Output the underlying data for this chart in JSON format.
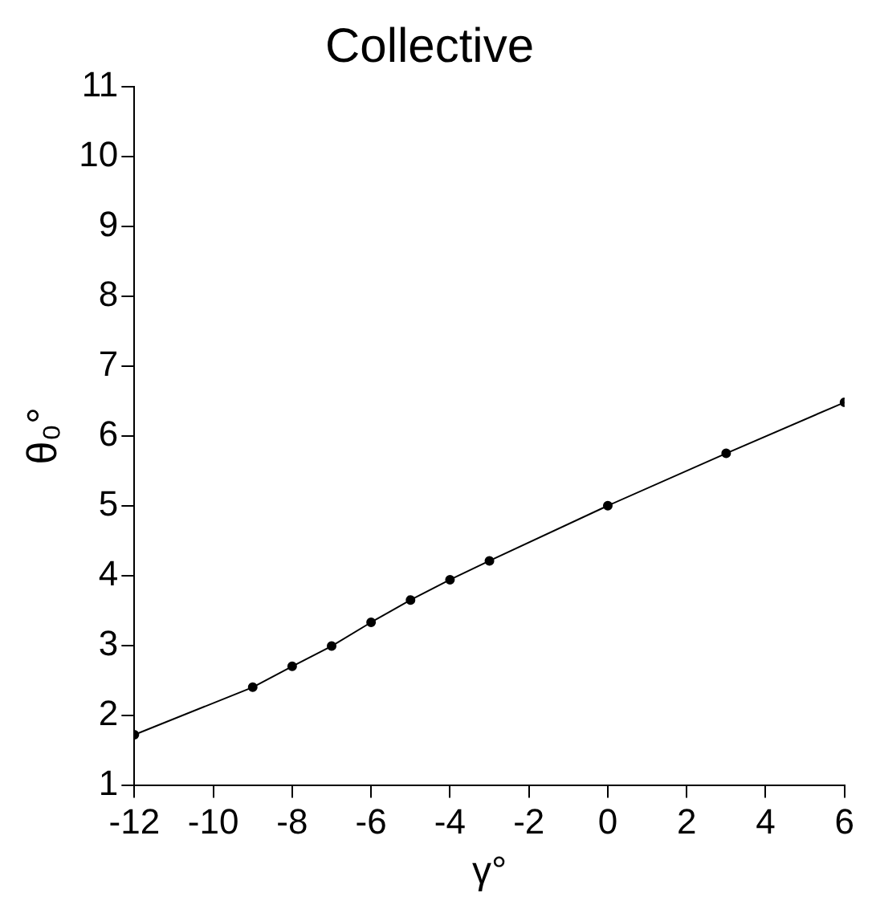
{
  "chart_data": {
    "type": "line",
    "title": "Collective",
    "xlabel": "γ°",
    "ylabel": "θ₀°",
    "x": [
      -12,
      -9,
      -8,
      -7,
      -6,
      -5,
      -4,
      -3,
      0,
      3,
      6
    ],
    "series": [
      {
        "color": "#000000",
        "values": [
          1.72,
          2.4,
          2.7,
          2.99,
          3.33,
          3.65,
          3.94,
          4.21,
          5.0,
          5.75,
          6.48
        ]
      }
    ],
    "xlim": [
      -12,
      6
    ],
    "xticks": [
      -12,
      -10,
      -8,
      -6,
      -4,
      -2,
      0,
      2,
      4,
      6
    ],
    "ylim": [
      1,
      11
    ],
    "yticks": [
      1,
      2,
      3,
      4,
      5,
      6,
      7,
      8,
      9,
      10,
      11
    ],
    "grid": false,
    "legend": false,
    "marker": "circle",
    "line_style": "solid"
  }
}
